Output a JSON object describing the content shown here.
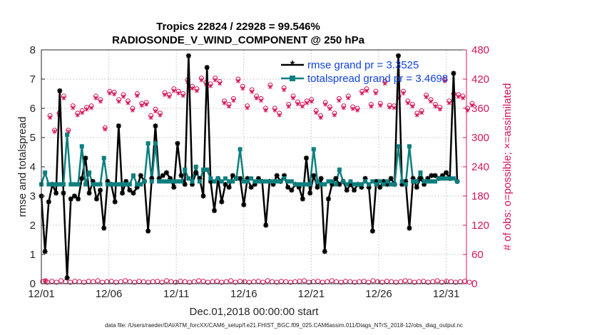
{
  "chart_data": {
    "type": "line",
    "title": "Tropics 22824 / 22928 = 99.546%",
    "subtitle": "RADIOSONDE_V_WIND_COMPONENT @ 250 hPa",
    "xlabel": "Dec.01,2018 00:00:00 start",
    "ylabel": "rmse and totalspread",
    "ylabel_right": "# of obs: o=possible; ×=assimilated",
    "footer": "data file: /Users/raeder/DAI/ATM_forcXX/CAM6_setup/f.e21.FHIST_BGC.f09_025.CAM6assim.011/Diags_NTrS_2018-12/obs_diag_output.nc",
    "xlim": [
      0,
      31.5
    ],
    "ylim": [
      0,
      8
    ],
    "ylim_right": [
      0,
      480
    ],
    "x_tick_values": [
      0,
      5,
      10,
      15,
      20,
      25,
      30
    ],
    "x_tick_labels": [
      "12/01",
      "12/06",
      "12/11",
      "12/16",
      "12/21",
      "12/26",
      "12/31"
    ],
    "y_tick_labels": [
      "0",
      "1",
      "2",
      "3",
      "4",
      "5",
      "6",
      "7",
      "8"
    ],
    "y_right_tick_labels": [
      "0",
      "60",
      "120",
      "180",
      "240",
      "300",
      "360",
      "420",
      "480"
    ],
    "legend_position": "top-right",
    "colors": {
      "rmse": "#000000",
      "spread": "#0e7f7f",
      "obs": "#d4145a",
      "legend_text": "#1144dd"
    },
    "series": [
      {
        "name": "rmse grand pr = 3.3525",
        "marker": "star",
        "values": [
          3.0,
          1.1,
          2.8,
          3.4,
          3.1,
          6.6,
          3.1,
          0.2,
          2.9,
          3.0,
          2.9,
          3.6,
          4.3,
          3.1,
          3.5,
          2.9,
          3.2,
          1.9,
          3.5,
          3.4,
          2.8,
          5.4,
          3.1,
          3.5,
          3.2,
          3.1,
          3.3,
          3.7,
          3.5,
          1.8,
          3.6,
          5.4,
          3.6,
          3.7,
          3.8,
          3.6,
          3.3,
          4.8,
          3.7,
          3.4,
          7.8,
          3.4,
          3.8,
          3.6,
          3.0,
          7.4,
          3.5,
          2.5,
          3.6,
          2.8,
          3.4,
          3.3,
          3.7,
          3.6,
          3.6,
          2.7,
          3.6,
          3.3,
          3.4,
          3.6,
          3.5,
          2.0,
          3.5,
          3.4,
          3.7,
          3.5,
          3.7,
          3.3,
          3.2,
          3.4,
          3.3,
          2.9,
          4.3,
          3.1,
          3.7,
          3.3,
          3.6,
          1.1,
          2.9,
          3.4,
          3.6,
          3.4,
          3.5,
          3.2,
          3.4,
          3.2,
          3.4,
          3.3,
          3.6,
          3.3,
          1.8,
          3.5,
          3.3,
          3.5,
          3.4,
          3.6,
          3.4,
          7.8,
          3.4,
          3.5,
          1.9,
          3.6,
          3.3,
          3.6,
          3.4,
          3.6,
          3.7,
          3.7,
          3.6,
          3.7,
          3.8,
          3.6,
          7.2,
          3.5
        ],
        "x_start": 0,
        "x_step": 0.2727
      },
      {
        "name": "totalspread grand pr = 3.4698",
        "marker": "square",
        "values": [
          3.4,
          3.8,
          3.4,
          3.4,
          3.4,
          3.4,
          3.4,
          5.1,
          3.4,
          3.4,
          3.4,
          4.7,
          3.4,
          3.8,
          3.4,
          3.4,
          3.4,
          4.3,
          3.4,
          3.4,
          3.4,
          3.4,
          3.4,
          3.4,
          3.4,
          3.7,
          3.4,
          3.4,
          3.5,
          4.8,
          3.5,
          4.8,
          3.5,
          3.5,
          3.5,
          3.5,
          3.5,
          3.5,
          3.5,
          3.9,
          3.6,
          3.5,
          4.0,
          3.5,
          3.9,
          3.9,
          3.6,
          3.5,
          3.6,
          3.5,
          3.6,
          3.5,
          3.5,
          3.6,
          4.6,
          3.5,
          3.5,
          3.6,
          3.5,
          3.5,
          3.5,
          3.5,
          3.5,
          3.5,
          3.5,
          3.5,
          3.6,
          3.5,
          3.5,
          3.4,
          3.4,
          3.4,
          3.4,
          3.4,
          4.6,
          3.5,
          3.4,
          3.4,
          3.5,
          3.5,
          3.4,
          3.9,
          3.5,
          3.4,
          3.5,
          3.4,
          3.4,
          3.4,
          3.5,
          3.4,
          3.5,
          3.4,
          3.5,
          3.4,
          3.5,
          3.4,
          3.4,
          4.7,
          3.5,
          3.4,
          4.7,
          3.5,
          3.5,
          3.8,
          3.5,
          3.5,
          3.5,
          3.5,
          3.6,
          3.6,
          3.6,
          3.6,
          3.6,
          3.5
        ],
        "x_start": 0,
        "x_step": 0.2727
      }
    ],
    "obs_possible": {
      "name": "possible",
      "values": [
        6,
        345,
        315,
        350,
        385,
        315,
        365,
        350,
        355,
        362,
        365,
        385,
        378,
        320,
        395,
        393,
        378,
        388,
        375,
        360,
        390,
        370,
        372,
        345,
        358,
        350,
        392,
        388,
        400,
        395,
        390,
        418,
        405,
        400,
        422,
        413,
        410,
        422,
        415,
        375,
        368,
        380,
        420,
        405,
        365,
        398,
        385,
        380,
        360,
        408,
        360,
        350,
        402,
        368,
        385,
        373,
        368,
        375,
        378,
        355,
        345,
        372,
        363,
        350,
        380,
        365,
        385,
        363,
        360,
        395,
        400,
        368,
        395,
        370,
        415,
        366,
        365,
        385,
        395,
        375,
        368,
        350,
        355,
        387,
        378,
        368,
        362,
        420,
        375,
        390,
        388,
        385,
        360,
        370
      ],
      "x_start": 0.3,
      "x_step": 0.34
    },
    "obs_assimilated": {
      "name": "assimilated",
      "values": [
        6,
        341,
        312,
        347,
        381,
        312,
        361,
        346,
        351,
        358,
        361,
        381,
        374,
        317,
        391,
        389,
        374,
        384,
        371,
        356,
        386,
        366,
        368,
        341,
        354,
        346,
        388,
        384,
        396,
        391,
        386,
        414,
        401,
        396,
        418,
        409,
        406,
        418,
        411,
        371,
        364,
        376,
        416,
        401,
        361,
        394,
        381,
        376,
        356,
        404,
        356,
        346,
        398,
        364,
        381,
        369,
        364,
        371,
        374,
        351,
        341,
        368,
        359,
        346,
        376,
        361,
        381,
        359,
        356,
        391,
        396,
        364,
        391,
        366,
        411,
        362,
        361,
        381,
        391,
        371,
        364,
        346,
        351,
        383,
        374,
        364,
        358,
        416,
        371,
        386,
        384,
        381,
        356,
        366
      ],
      "x_start": 0.3,
      "x_step": 0.34
    },
    "obs_low": {
      "name": "possible/assimilated low counts",
      "values": [
        4,
        3,
        5,
        3,
        6,
        4,
        3,
        5,
        4,
        3,
        5,
        4,
        6,
        3,
        4,
        5,
        3,
        4,
        6,
        4,
        3,
        5,
        4,
        3,
        4,
        5,
        3,
        6,
        4,
        3,
        5,
        4,
        3,
        4,
        6,
        5,
        3,
        4,
        5,
        3,
        4,
        6,
        3,
        5,
        4,
        3,
        4,
        5,
        3,
        6,
        4,
        3,
        5,
        4,
        3,
        4,
        5,
        6,
        3,
        4,
        5,
        3,
        4,
        6,
        4,
        3,
        5,
        4,
        3,
        4,
        5,
        3,
        6,
        4,
        3,
        5,
        4,
        3,
        4,
        6,
        5,
        3,
        4,
        5,
        3,
        4,
        6,
        3,
        5,
        4,
        3,
        4,
        5,
        3
      ],
      "x_start": 0.1,
      "x_step": 0.34
    }
  }
}
